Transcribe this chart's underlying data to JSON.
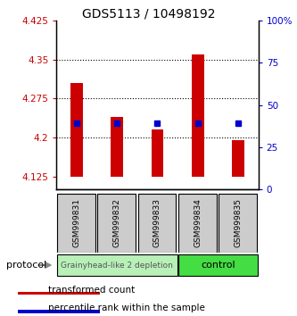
{
  "title": "GDS5113 / 10498192",
  "samples": [
    "GSM999831",
    "GSM999832",
    "GSM999833",
    "GSM999834",
    "GSM999835"
  ],
  "red_bar_top": [
    4.305,
    4.24,
    4.215,
    4.36,
    4.195
  ],
  "red_bar_bottom": 4.125,
  "blue_y": [
    4.228,
    4.228,
    4.228,
    4.228,
    4.228
  ],
  "ylim": [
    4.1,
    4.425
  ],
  "yticks": [
    4.125,
    4.2,
    4.275,
    4.35,
    4.425
  ],
  "ytick_labels": [
    "4.125",
    "4.2",
    "4.275",
    "4.35",
    "4.425"
  ],
  "y2lim": [
    0,
    100
  ],
  "y2ticks": [
    0,
    25,
    50,
    75,
    100
  ],
  "y2tick_labels": [
    "0",
    "25",
    "50",
    "75",
    "100%"
  ],
  "bar_color": "#cc0000",
  "blue_color": "#0000cc",
  "group1_label": "Grainyhead-like 2 depletion",
  "group1_color": "#b8f0b8",
  "group2_label": "control",
  "group2_color": "#44dd44",
  "protocol_label": "protocol",
  "legend_red": "transformed count",
  "legend_blue": "percentile rank within the sample",
  "background_color": "#ffffff",
  "tick_color_left": "#cc0000",
  "tick_color_right": "#0000cc",
  "sample_box_color": "#cccccc",
  "grid_lines": [
    4.2,
    4.275,
    4.35
  ],
  "bar_width": 0.3
}
